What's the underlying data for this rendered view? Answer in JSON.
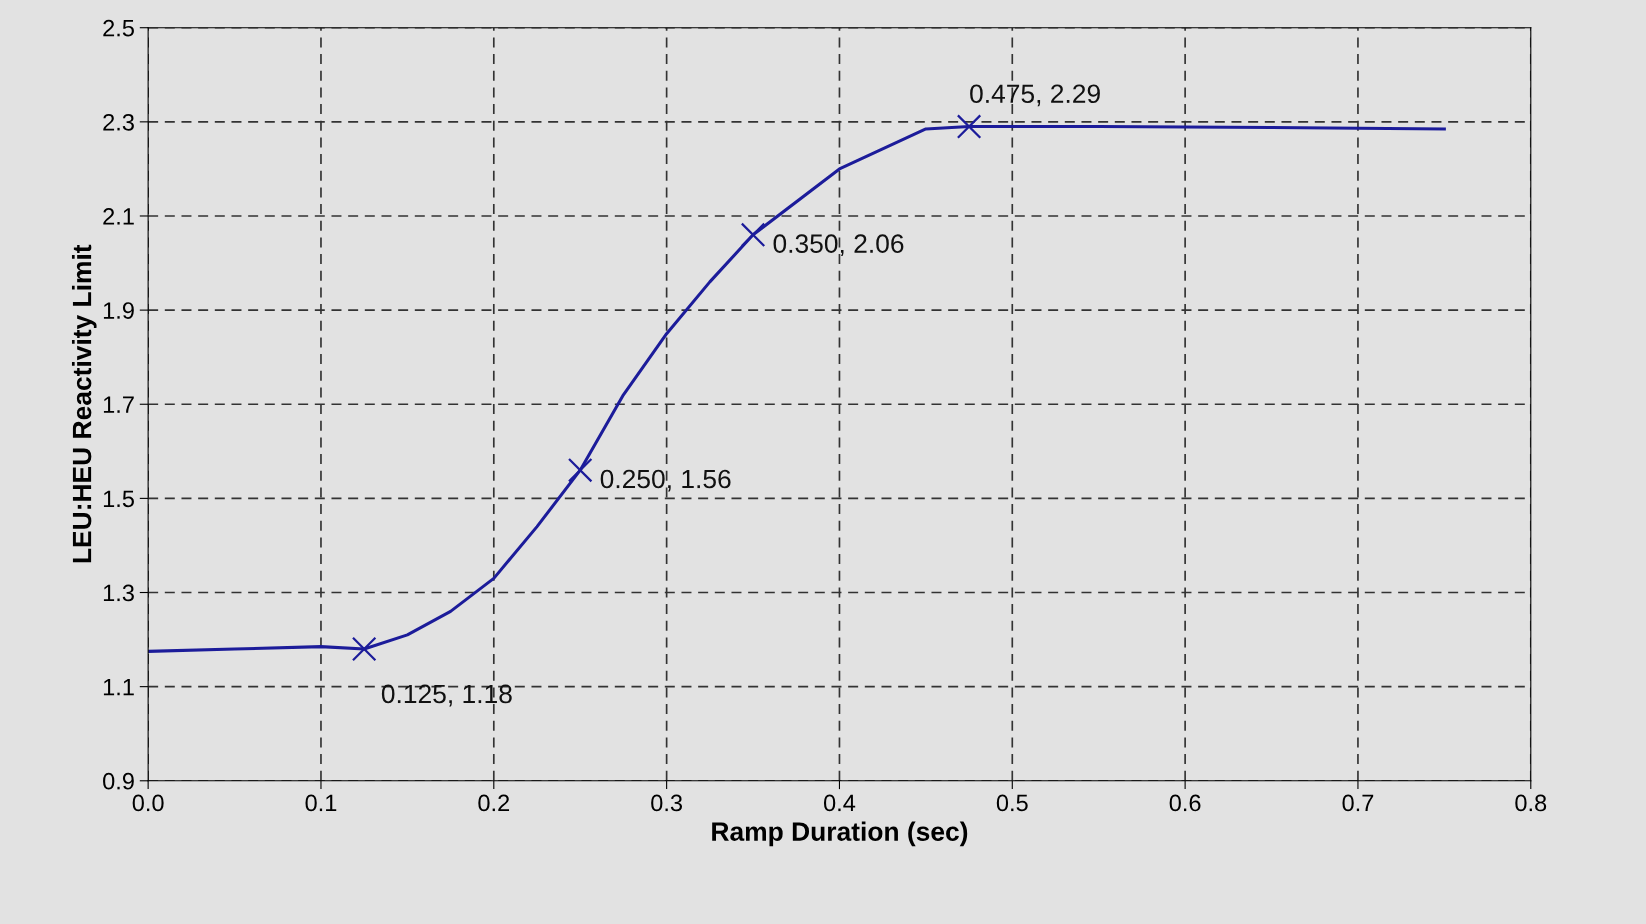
{
  "chart_data": {
    "type": "line",
    "xlabel": "Ramp Duration (sec)",
    "ylabel": "LEU:HEU Reactivity Limit",
    "xlim": [
      0.0,
      0.8
    ],
    "xticks": [
      {
        "value": 0,
        "label": "0.0"
      },
      0.1,
      0.2,
      0.3,
      0.4,
      0.5,
      0.6,
      0.7,
      0.8
    ],
    "ylim": [
      0.9,
      2.5
    ],
    "yticks": [
      0.9,
      1.1,
      1.3,
      1.5,
      1.7,
      1.9,
      2.1,
      2.3,
      2.5
    ],
    "grid": true,
    "legend": false,
    "series": [
      {
        "color": "#1c1c9a",
        "marker": "none",
        "x": [
          0,
          0.05,
          0.1,
          0.125,
          0.15,
          0.175,
          0.2,
          0.225,
          0.25,
          0.275,
          0.3,
          0.325,
          0.35,
          0.4,
          0.45,
          0.475,
          0.55,
          0.65,
          0.75
        ],
        "values": [
          1.175,
          1.18,
          1.185,
          1.18,
          1.21,
          1.26,
          1.33,
          1.44,
          1.56,
          1.72,
          1.85,
          1.96,
          2.06,
          2.2,
          2.285,
          2.29,
          2.29,
          2.288,
          2.285
        ]
      },
      {
        "color": "#1c1c9a",
        "type": "scatter",
        "marker": "cross",
        "x": [
          0.125,
          0.25,
          0.35,
          0.475
        ],
        "values": [
          1.18,
          1.56,
          2.06,
          2.29
        ]
      }
    ],
    "annotations": [
      {
        "text": "0.125, 1.18",
        "x": 0.125,
        "y": 1.18
      },
      {
        "text": "0.250, 1.56",
        "x": 0.25,
        "y": 1.56
      },
      {
        "text": "0.350, 2.06",
        "x": 0.35,
        "y": 2.06
      },
      {
        "text": "0.475, 2.29",
        "x": 0.475,
        "y": 2.29
      }
    ]
  }
}
